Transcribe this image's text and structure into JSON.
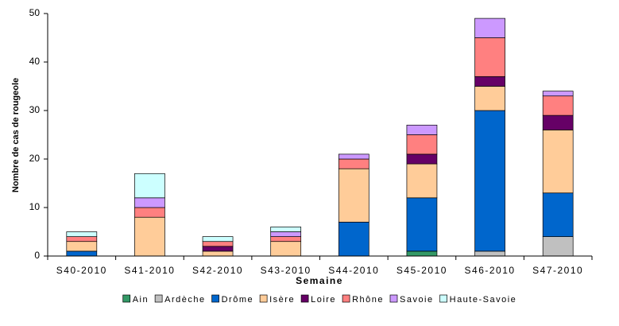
{
  "chart_data": {
    "type": "bar",
    "stacked": true,
    "x_label": "Semaine",
    "y_label": "Nombre de cas de rougeole",
    "categories": [
      "S40-2010",
      "S41-2010",
      "S42-2010",
      "S43-2010",
      "S44-2010",
      "S45-2010",
      "S46-2010",
      "S47-2010"
    ],
    "series": [
      {
        "name": "Ain",
        "color": "#339966",
        "values": [
          0,
          0,
          0,
          0,
          0,
          1,
          0,
          0
        ]
      },
      {
        "name": "Ardèche",
        "color": "#c0c0c0",
        "values": [
          0,
          0,
          0,
          0,
          0,
          0,
          1,
          4
        ]
      },
      {
        "name": "Drôme",
        "color": "#0066cc",
        "values": [
          1,
          0,
          0,
          0,
          7,
          11,
          29,
          9
        ]
      },
      {
        "name": "Isère",
        "color": "#ffcc99",
        "values": [
          2,
          8,
          1,
          3,
          11,
          7,
          5,
          13
        ]
      },
      {
        "name": "Loire",
        "color": "#660066",
        "values": [
          0,
          0,
          1,
          0,
          0,
          2,
          2,
          3
        ]
      },
      {
        "name": "Rhône",
        "color": "#ff8080",
        "values": [
          1,
          2,
          1,
          1,
          2,
          4,
          8,
          4
        ]
      },
      {
        "name": "Savoie",
        "color": "#cc99ff",
        "values": [
          0,
          2,
          0,
          1,
          1,
          2,
          4,
          1
        ]
      },
      {
        "name": "Haute-Savoie",
        "color": "#ccffff",
        "values": [
          1,
          5,
          1,
          1,
          0,
          0,
          0,
          0
        ]
      }
    ],
    "ylim": [
      0,
      50
    ],
    "yticks": [
      0,
      10,
      20,
      30,
      40,
      50
    ],
    "grid": false,
    "legend": "bottom"
  }
}
